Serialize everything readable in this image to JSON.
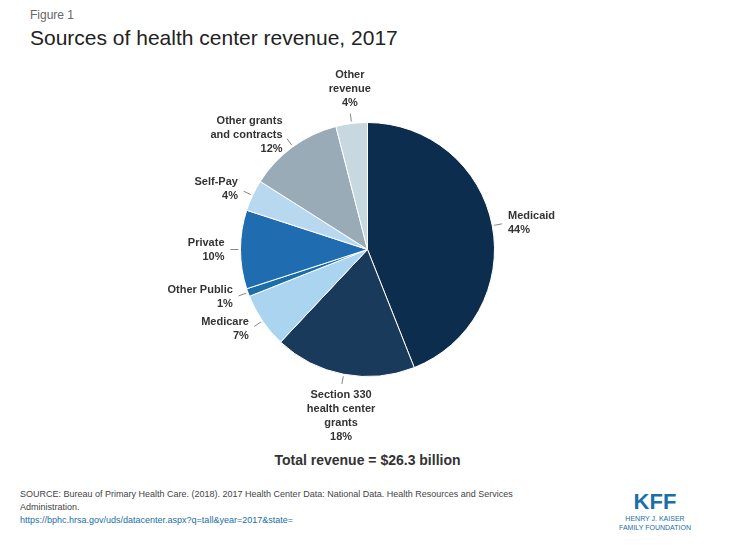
{
  "chart_data": {
    "type": "pie",
    "figure_label": "Figure 1",
    "title": "Sources of health center revenue, 2017",
    "categories": [
      "Medicaid",
      "Section 330\nhealth center\ngrants",
      "Medicare",
      "Other Public",
      "Private",
      "Self-Pay",
      "Other grants\nand contracts",
      "Other\nrevenue"
    ],
    "values": [
      44,
      18,
      7,
      1,
      10,
      4,
      12,
      4
    ],
    "value_labels": [
      "44%",
      "18%",
      "7%",
      "1%",
      "10%",
      "4%",
      "12%",
      "4%"
    ],
    "colors": [
      "#0d2d4e",
      "#1a3a5c",
      "#aad4f0",
      "#1a6fa8",
      "#1f6cb0",
      "#b8d8f0",
      "#9aabb8",
      "#c8d8e0"
    ],
    "data_labels": true,
    "annotations": [
      "Total revenue = $26.3 billion"
    ],
    "source": [
      "SOURCE: Bureau of Primary Health Care. (2018). 2017 Health Center Data: National Data. Health Resources and Services",
      "Administration.",
      "https://bphc.hrsa.gov/uds/datacenter.aspx?q=tall&year=2017&state="
    ],
    "logo": [
      "KFF",
      "HENRY J. KAISER",
      "FAMILY FOUNDATION"
    ]
  }
}
